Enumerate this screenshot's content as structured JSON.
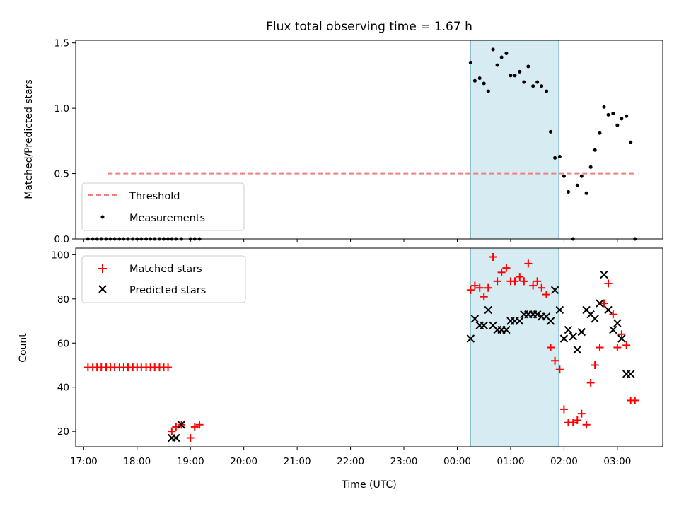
{
  "chart_data": {
    "title": "Flux total observing time = 1.67 h",
    "xlabel": "Time (UTC)",
    "x_unit": "hours after 17:00 UTC",
    "x_ticks": [
      "17:00",
      "18:00",
      "19:00",
      "20:00",
      "21:00",
      "22:00",
      "23:00",
      "00:00",
      "01:00",
      "02:00",
      "03:00"
    ],
    "xlim": [
      -0.15,
      10.85
    ],
    "highlight_span": {
      "x0": 7.25,
      "x1": 8.9,
      "color": "#add8e6"
    },
    "colors": {
      "threshold": "#f08080",
      "measurements": "#000000",
      "matched": "#ff0000",
      "predicted": "#000000",
      "span": "#add8e6"
    },
    "panels": [
      {
        "type": "scatter",
        "ylabel": "Matched/Predicted stars",
        "ylim": [
          0,
          1.52
        ],
        "y_ticks": [
          "0.0",
          "0.5",
          "1.0",
          "1.5"
        ],
        "y_tick_values": [
          0,
          0.5,
          1.0,
          1.5
        ],
        "legend": {
          "position": "lower-left",
          "entries": [
            "Threshold",
            "Measurements"
          ]
        },
        "series": [
          {
            "name": "Threshold",
            "style": "dashed-line",
            "x": [
              0.45,
              10.33
            ],
            "y": [
              0.5,
              0.5
            ]
          },
          {
            "name": "Measurements",
            "style": "dot",
            "x": [
              0.08,
              0.17,
              0.25,
              0.33,
              0.42,
              0.5,
              0.58,
              0.67,
              0.75,
              0.83,
              0.92,
              1.0,
              1.08,
              1.17,
              1.25,
              1.33,
              1.42,
              1.5,
              1.58,
              1.65,
              1.73,
              1.83,
              2.0,
              2.08,
              2.17,
              7.25,
              7.33,
              7.42,
              7.5,
              7.58,
              7.67,
              7.75,
              7.83,
              7.92,
              8.0,
              8.08,
              8.17,
              8.25,
              8.33,
              8.42,
              8.5,
              8.58,
              8.67,
              8.75,
              8.83,
              8.92,
              9.0,
              9.08,
              9.17,
              9.25,
              9.33,
              9.42,
              9.5,
              9.58,
              9.67,
              9.75,
              9.83,
              9.92,
              10.0,
              10.08,
              10.17,
              10.25,
              10.33
            ],
            "y": [
              0,
              0,
              0,
              0,
              0,
              0,
              0,
              0,
              0,
              0,
              0,
              0,
              0,
              0,
              0,
              0,
              0,
              0,
              0,
              0,
              0,
              0,
              0,
              0,
              0,
              1.35,
              1.21,
              1.23,
              1.19,
              1.13,
              1.45,
              1.33,
              1.39,
              1.42,
              1.25,
              1.25,
              1.28,
              1.2,
              1.32,
              1.17,
              1.2,
              1.17,
              1.13,
              0.82,
              0.62,
              0.63,
              0.48,
              0.36,
              0.0,
              0.41,
              0.48,
              0.35,
              0.55,
              0.68,
              0.81,
              1.01,
              0.95,
              0.96,
              0.87,
              0.92,
              0.94,
              0.74,
              0.0
            ]
          }
        ]
      },
      {
        "type": "scatter",
        "ylabel": "Count",
        "ylim": [
          13,
          103
        ],
        "y_ticks": [
          "20",
          "40",
          "60",
          "80",
          "100"
        ],
        "y_tick_values": [
          20,
          40,
          60,
          80,
          100
        ],
        "legend": {
          "position": "upper-left",
          "entries": [
            "Matched stars",
            "Predicted stars"
          ]
        },
        "series": [
          {
            "name": "Matched stars",
            "style": "plus",
            "x": [
              0.08,
              0.17,
              0.25,
              0.33,
              0.42,
              0.5,
              0.58,
              0.67,
              0.75,
              0.83,
              0.92,
              1.0,
              1.08,
              1.17,
              1.25,
              1.33,
              1.42,
              1.5,
              1.58,
              1.65,
              1.73,
              1.83,
              2.0,
              2.08,
              2.17,
              7.25,
              7.33,
              7.42,
              7.5,
              7.58,
              7.67,
              7.75,
              7.83,
              7.92,
              8.0,
              8.08,
              8.17,
              8.25,
              8.33,
              8.42,
              8.5,
              8.58,
              8.67,
              8.75,
              8.83,
              8.92,
              9.0,
              9.08,
              9.17,
              9.25,
              9.33,
              9.42,
              9.5,
              9.58,
              9.67,
              9.75,
              9.83,
              9.92,
              10.0,
              10.08,
              10.17,
              10.25,
              10.33
            ],
            "y": [
              49,
              49,
              49,
              49,
              49,
              49,
              49,
              49,
              49,
              49,
              49,
              49,
              49,
              49,
              49,
              49,
              49,
              49,
              49,
              20,
              22,
              23,
              17,
              22,
              23,
              84,
              86,
              85,
              81,
              85,
              99,
              88,
              92,
              94,
              88,
              88,
              90,
              88,
              96,
              86,
              88,
              85,
              82,
              58,
              52,
              48,
              30,
              24,
              24,
              25,
              28,
              23,
              42,
              50,
              58,
              78,
              87,
              73,
              58,
              64,
              59,
              34,
              34
            ]
          },
          {
            "name": "Predicted stars",
            "style": "x",
            "x": [
              1.65,
              1.73,
              1.83,
              7.25,
              7.33,
              7.42,
              7.5,
              7.58,
              7.67,
              7.75,
              7.83,
              7.92,
              8.0,
              8.08,
              8.17,
              8.25,
              8.33,
              8.42,
              8.5,
              8.58,
              8.67,
              8.75,
              8.83,
              8.92,
              9.0,
              9.08,
              9.17,
              9.25,
              9.33,
              9.42,
              9.5,
              9.58,
              9.67,
              9.75,
              9.83,
              9.92,
              10.0,
              10.08,
              10.17,
              10.25
            ],
            "y": [
              17,
              17,
              23,
              62,
              71,
              68,
              68,
              75,
              68,
              66,
              66,
              66,
              70,
              70,
              70,
              73,
              73,
              73,
              73,
              72,
              72,
              70,
              84,
              75,
              62,
              66,
              63,
              57,
              65,
              75,
              73,
              71,
              78,
              91,
              75,
              66,
              69,
              62,
              46,
              46
            ]
          }
        ]
      }
    ]
  }
}
